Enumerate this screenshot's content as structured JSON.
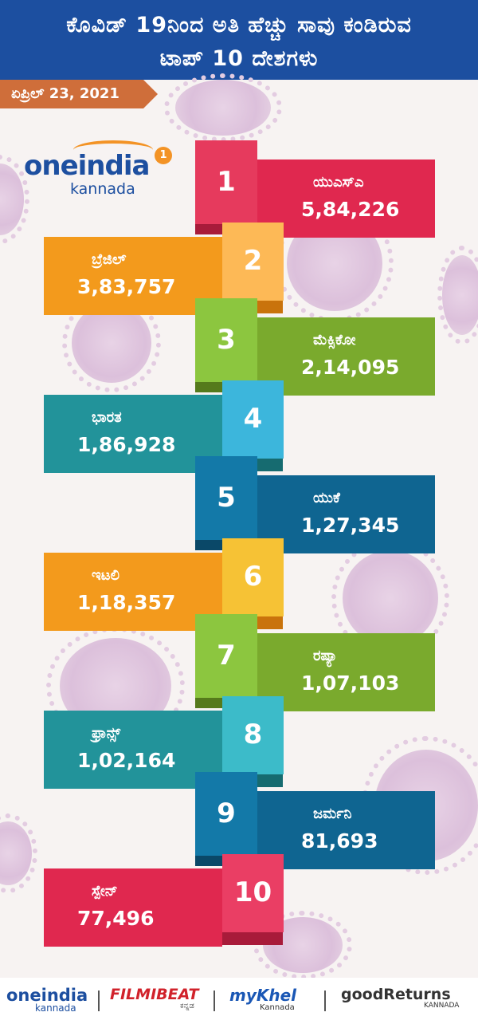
{
  "header": {
    "line1": "ಕೊವಿಡ್ 19ನಿಂದ ಅತಿ ಹೆಚ್ಚು ಸಾವು ಕಂಡಿರುವ",
    "line2": "ಟಾಪ್ 10 ದೇಶಗಳು"
  },
  "date": "ಏಪ್ರಿಲ್ 23, 2021",
  "logo": {
    "one": "oneindia",
    "kannada": "kannada",
    "badge": "1"
  },
  "chart_data": {
    "type": "table",
    "title": "ಕೊವಿಡ್ 19ನಿಂದ ಅತಿ ಹೆಚ್ಚು ಸಾವು ಕಂಡಿರುವ ಟಾಪ್ 10 ದೇಶಗಳು",
    "rows": [
      {
        "rank": "1",
        "country": "ಯುಎಸ್ಎ",
        "deaths": "5,84,226",
        "value": 584226
      },
      {
        "rank": "2",
        "country": "ಬ್ರೆಜಿಲ್",
        "deaths": "3,83,757",
        "value": 383757
      },
      {
        "rank": "3",
        "country": "ಮೆಕ್ಸಿಕೋ",
        "deaths": "2,14,095",
        "value": 214095
      },
      {
        "rank": "4",
        "country": "ಭಾರತ",
        "deaths": "1,86,928",
        "value": 186928
      },
      {
        "rank": "5",
        "country": "ಯುಕೆ",
        "deaths": "1,27,345",
        "value": 127345
      },
      {
        "rank": "6",
        "country": "ಇಟಲಿ",
        "deaths": "1,18,357",
        "value": 118357
      },
      {
        "rank": "7",
        "country": "ರಷ್ಯಾ",
        "deaths": "1,07,103",
        "value": 107103
      },
      {
        "rank": "8",
        "country": "ಫ್ರಾನ್ಸ್",
        "deaths": "1,02,164",
        "value": 102164
      },
      {
        "rank": "9",
        "country": "ಜರ್ಮನಿ",
        "deaths": "81,693",
        "value": 81693
      },
      {
        "rank": "10",
        "country": "ಸ್ಪೇನ್",
        "deaths": "77,496",
        "value": 77496
      }
    ]
  },
  "colors": {
    "rows": [
      {
        "bar": "#e0284f",
        "box": "#e63a5d",
        "dark": "#a81b3a"
      },
      {
        "bar": "#f39a1c",
        "box": "#fdb956",
        "dark": "#c9730c"
      },
      {
        "bar": "#7aaa2d",
        "box": "#8cc63f",
        "dark": "#557a1c"
      },
      {
        "bar": "#22939a",
        "box": "#3cb6dc",
        "dark": "#166b70"
      },
      {
        "bar": "#0f6591",
        "box": "#1379a8",
        "dark": "#0a4868"
      },
      {
        "bar": "#f39a1c",
        "box": "#f6c235",
        "dark": "#c9730c"
      },
      {
        "bar": "#7aaa2d",
        "box": "#8cc63f",
        "dark": "#557a1c"
      },
      {
        "bar": "#22939a",
        "box": "#3cbbc9",
        "dark": "#166b70"
      },
      {
        "bar": "#0f6591",
        "box": "#1379a8",
        "dark": "#0a4868"
      },
      {
        "bar": "#e0284f",
        "box": "#ea3e64",
        "dark": "#a81b3a"
      }
    ]
  },
  "footer": {
    "brand1": "oneindia",
    "brand1_sub": "kannada",
    "brand2": "FILMIBEAT",
    "brand2_sub": "ಕನ್ನಡ",
    "brand3": "myKhel",
    "brand3_sub": "Kannada",
    "brand4": "goodReturns",
    "brand4_sub": "KANNADA"
  }
}
